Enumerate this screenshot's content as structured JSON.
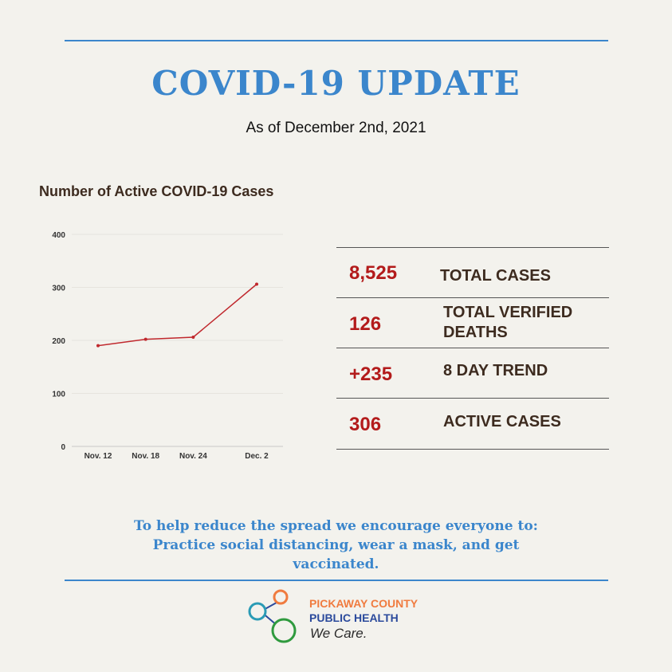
{
  "header": {
    "title": "COVID-19 UPDATE",
    "date": "As of December 2nd, 2021"
  },
  "chart_title": "Number of Active COVID-19 Cases",
  "chart_data": {
    "type": "line",
    "categories": [
      "Nov. 12",
      "Nov. 18",
      "Nov. 24",
      "Dec. 2"
    ],
    "x": [
      12,
      18,
      24,
      32
    ],
    "values": [
      190,
      202,
      206,
      306
    ],
    "ylim": [
      0,
      400
    ],
    "yticks": [
      0,
      100,
      200,
      300,
      400
    ],
    "title": "Number of Active COVID-19 Cases",
    "xlabel": "",
    "ylabel": "",
    "grid": true,
    "color": "#c0282d"
  },
  "stats": [
    {
      "value": "8,525",
      "label_lines": [
        "TOTAL CASES"
      ]
    },
    {
      "value": "126",
      "label_lines": [
        "TOTAL VERIFIED",
        "DEATHS"
      ]
    },
    {
      "value": "+235",
      "label_lines": [
        "8 DAY TREND"
      ]
    },
    {
      "value": "306",
      "label_lines": [
        "ACTIVE CASES"
      ]
    }
  ],
  "message": {
    "line1": "To help reduce the spread we encourage everyone to:",
    "line2": "Practice social distancing, wear a mask, and get",
    "line3": "vaccinated."
  },
  "logo": {
    "line1": "PICKAWAY COUNTY",
    "line2": "PUBLIC HEALTH",
    "line3": "We Care.",
    "colors": {
      "orange": "#f07b3f",
      "teal": "#2a9bb5",
      "green": "#2f9a3e",
      "navy": "#2b4a9c"
    }
  }
}
